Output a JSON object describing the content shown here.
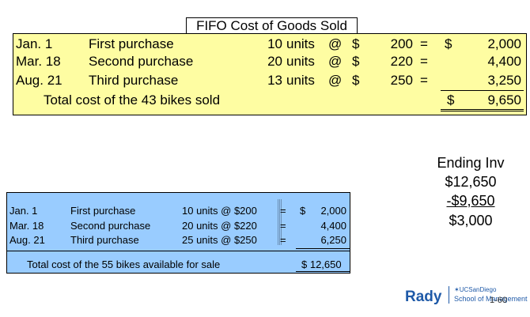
{
  "fifo": {
    "title": "FIFO Cost of Goods Sold",
    "rows": [
      {
        "date": "Jan. 1",
        "desc": "First purchase",
        "qty": "10",
        "unit": "units",
        "at": "@",
        "cur": "$",
        "price": "200",
        "eq": "=",
        "dollar": "$",
        "total": "2,000"
      },
      {
        "date": "Mar. 18",
        "desc": "Second purchase",
        "qty": "20",
        "unit": "units",
        "at": "@",
        "cur": "$",
        "price": "220",
        "eq": "=",
        "dollar": "",
        "total": "4,400"
      },
      {
        "date": "Aug. 21",
        "desc": "Third purchase",
        "qty": "13",
        "unit": "units",
        "at": "@",
        "cur": "$",
        "price": "250",
        "eq": "=",
        "dollar": "",
        "total": "3,250"
      }
    ],
    "total_label": "Total cost of the 43 bikes sold",
    "total_dollar": "$",
    "total_value": "9,650"
  },
  "ending_inv": {
    "title": "Ending Inv",
    "line1": "$12,650",
    "line2": "-$9,650",
    "line3": "$3,000"
  },
  "available": {
    "rows": [
      {
        "date": "Jan. 1",
        "desc": "First purchase",
        "calc": "10 units @ $200",
        "eq": "=",
        "dollar": "$",
        "total": "2,000"
      },
      {
        "date": "Mar. 18",
        "desc": "Second purchase",
        "calc": "20 units @ $220",
        "eq": "=",
        "dollar": "",
        "total": "4,400"
      },
      {
        "date": "Aug. 21",
        "desc": "Third purchase",
        "calc": "25 units @ $250",
        "eq": "=",
        "dollar": "",
        "total": "6,250"
      }
    ],
    "total_label": "Total cost of the 55 bikes available for sale",
    "total_value": "$ 12,650"
  },
  "logo": {
    "rady": "Rady",
    "ucsd": "UCSanDiego",
    "school": "School of Management"
  },
  "page_number": "1-60"
}
